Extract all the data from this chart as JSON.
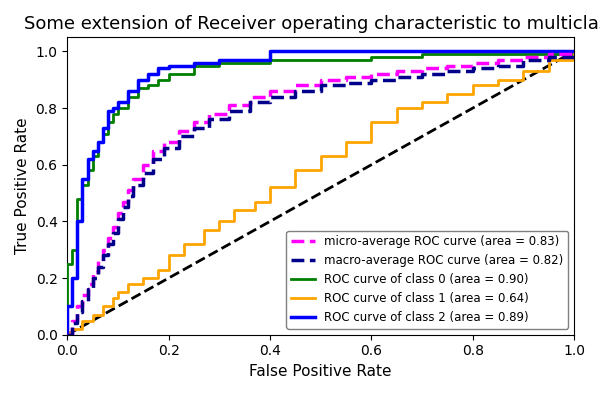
{
  "title": "Some extension of Receiver operating characteristic to multiclass",
  "xlabel": "False Positive Rate",
  "ylabel": "True Positive Rate",
  "xlim": [
    0.0,
    1.0
  ],
  "ylim": [
    0.0,
    1.05
  ],
  "legend_labels": [
    "micro-average ROC curve (area = 0.83)",
    "macro-average ROC curve (area = 0.82)",
    "ROC curve of class 0 (area = 0.90)",
    "ROC curve of class 1 (area = 0.64)",
    "ROC curve of class 2 (area = 0.89)"
  ],
  "micro_color": "#ff00ff",
  "macro_color": "#00008b",
  "class0_color": "#008000",
  "class1_color": "#ffa500",
  "class2_color": "#0000ff",
  "diag_color": "black",
  "figsize": [
    6.0,
    3.94
  ],
  "dpi": 100,
  "title_fontsize": 13,
  "axis_fontsize": 11,
  "legend_fontsize": 8.5,
  "micro_fpr": [
    0.0,
    0.01,
    0.02,
    0.03,
    0.04,
    0.05,
    0.06,
    0.07,
    0.08,
    0.09,
    0.1,
    0.11,
    0.12,
    0.13,
    0.15,
    0.17,
    0.19,
    0.22,
    0.25,
    0.28,
    0.32,
    0.36,
    0.4,
    0.45,
    0.5,
    0.55,
    0.6,
    0.65,
    0.7,
    0.75,
    0.8,
    0.85,
    0.9,
    0.95,
    1.0
  ],
  "micro_tpr": [
    0.0,
    0.05,
    0.1,
    0.14,
    0.18,
    0.22,
    0.26,
    0.3,
    0.34,
    0.38,
    0.43,
    0.47,
    0.51,
    0.55,
    0.6,
    0.65,
    0.68,
    0.72,
    0.75,
    0.78,
    0.81,
    0.84,
    0.86,
    0.88,
    0.9,
    0.91,
    0.92,
    0.93,
    0.94,
    0.95,
    0.96,
    0.97,
    0.98,
    0.99,
    1.0
  ],
  "macro_fpr": [
    0.0,
    0.01,
    0.02,
    0.03,
    0.04,
    0.05,
    0.06,
    0.07,
    0.08,
    0.09,
    0.1,
    0.11,
    0.12,
    0.13,
    0.15,
    0.17,
    0.19,
    0.22,
    0.25,
    0.28,
    0.32,
    0.36,
    0.4,
    0.45,
    0.5,
    0.55,
    0.6,
    0.65,
    0.7,
    0.75,
    0.8,
    0.85,
    0.9,
    0.95,
    1.0
  ],
  "macro_tpr": [
    0.0,
    0.04,
    0.08,
    0.12,
    0.16,
    0.2,
    0.24,
    0.28,
    0.32,
    0.36,
    0.41,
    0.45,
    0.49,
    0.53,
    0.57,
    0.62,
    0.66,
    0.7,
    0.73,
    0.76,
    0.79,
    0.82,
    0.84,
    0.86,
    0.88,
    0.89,
    0.9,
    0.91,
    0.92,
    0.93,
    0.94,
    0.95,
    0.97,
    0.98,
    1.0
  ],
  "class0_fpr": [
    0.0,
    0.0,
    0.01,
    0.02,
    0.03,
    0.04,
    0.05,
    0.06,
    0.07,
    0.08,
    0.09,
    0.1,
    0.12,
    0.14,
    0.16,
    0.18,
    0.2,
    0.25,
    0.3,
    0.4,
    0.5,
    0.6,
    0.7,
    0.8,
    1.0
  ],
  "class0_tpr": [
    0.0,
    0.25,
    0.3,
    0.48,
    0.53,
    0.58,
    0.63,
    0.68,
    0.71,
    0.75,
    0.78,
    0.8,
    0.84,
    0.87,
    0.88,
    0.9,
    0.92,
    0.95,
    0.96,
    0.97,
    0.97,
    0.98,
    0.99,
    0.99,
    1.0
  ],
  "class1_fpr": [
    0.0,
    0.0,
    0.01,
    0.03,
    0.05,
    0.07,
    0.09,
    0.1,
    0.12,
    0.15,
    0.18,
    0.2,
    0.23,
    0.27,
    0.3,
    0.33,
    0.37,
    0.4,
    0.45,
    0.5,
    0.55,
    0.6,
    0.65,
    0.7,
    0.75,
    0.8,
    0.85,
    0.9,
    0.95,
    1.0
  ],
  "class1_tpr": [
    0.0,
    0.01,
    0.02,
    0.05,
    0.07,
    0.1,
    0.13,
    0.15,
    0.18,
    0.2,
    0.23,
    0.28,
    0.32,
    0.37,
    0.4,
    0.44,
    0.47,
    0.52,
    0.58,
    0.63,
    0.68,
    0.75,
    0.8,
    0.82,
    0.85,
    0.88,
    0.9,
    0.93,
    0.97,
    1.0
  ],
  "class2_fpr": [
    0.0,
    0.0,
    0.01,
    0.02,
    0.03,
    0.04,
    0.05,
    0.06,
    0.07,
    0.08,
    0.09,
    0.1,
    0.12,
    0.14,
    0.16,
    0.18,
    0.2,
    0.25,
    0.3,
    0.4,
    0.5,
    1.0
  ],
  "class2_tpr": [
    0.0,
    0.1,
    0.2,
    0.4,
    0.55,
    0.62,
    0.65,
    0.68,
    0.73,
    0.79,
    0.8,
    0.82,
    0.86,
    0.9,
    0.92,
    0.94,
    0.95,
    0.96,
    0.97,
    1.0,
    1.0,
    1.0
  ]
}
